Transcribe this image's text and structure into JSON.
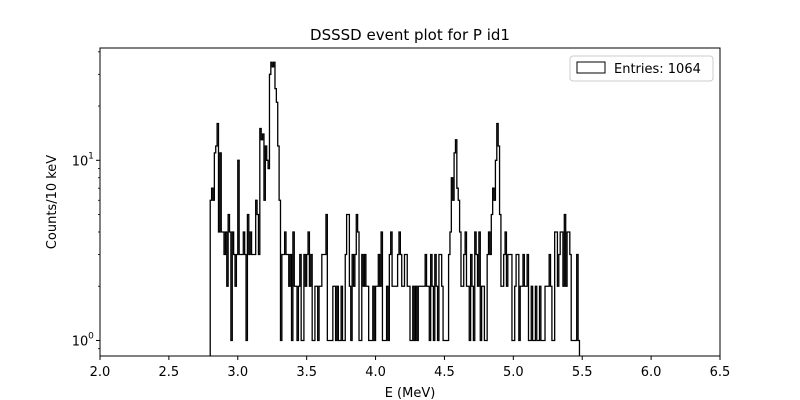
{
  "chart_data": {
    "type": "histogram",
    "title": "DSSSD event plot for P id1",
    "xlabel": "E (MeV)",
    "ylabel": "Counts/10 keV",
    "xlim": [
      2.0,
      6.5
    ],
    "ylim": [
      0.82,
      42
    ],
    "yscale": "log",
    "xticks": [
      "2.0",
      "2.5",
      "3.0",
      "3.5",
      "4.0",
      "4.5",
      "5.0",
      "5.5",
      "6.0",
      "6.5"
    ],
    "yticks": [
      {
        "value": 1,
        "base": "10",
        "exp": "0"
      },
      {
        "value": 10,
        "base": "10",
        "exp": "1"
      }
    ],
    "grid": false,
    "legend": {
      "position": "top-right",
      "label": "Entries: 1064"
    },
    "bin_width": 0.01,
    "x_start": 2.8,
    "counts": [
      6,
      7,
      6,
      11,
      12,
      16,
      4,
      11,
      4,
      4,
      3,
      4,
      2,
      5,
      4,
      1,
      4,
      3,
      2,
      3,
      10,
      3,
      3,
      3,
      4,
      3,
      1,
      5,
      3,
      4,
      3,
      3,
      3,
      6,
      5,
      3,
      15,
      13,
      14,
      6,
      12,
      10,
      9,
      30,
      35,
      33,
      35,
      25,
      21,
      12,
      6,
      1,
      3,
      3,
      4,
      3,
      3,
      2,
      3,
      1,
      4,
      2,
      2,
      1,
      2,
      3,
      1,
      1,
      3,
      2,
      3,
      4,
      2,
      3,
      1,
      1,
      2,
      2,
      1,
      2,
      2,
      3,
      3,
      3,
      5,
      1,
      1,
      1,
      1,
      2,
      2,
      1,
      2,
      1,
      1,
      2,
      1,
      1,
      3,
      5,
      5,
      2,
      1,
      3,
      2,
      3,
      5,
      4,
      1,
      1,
      3,
      2,
      3,
      2,
      2,
      1,
      1,
      1,
      2,
      1,
      2,
      2,
      3,
      2,
      4,
      1,
      1,
      1,
      2,
      1,
      3,
      4,
      2,
      2,
      2,
      2,
      3,
      4,
      3,
      2,
      2,
      3,
      3,
      2,
      2,
      1,
      1,
      2,
      1,
      2,
      1,
      2,
      2,
      2,
      2,
      2,
      3,
      2,
      2,
      1,
      3,
      2,
      1,
      3,
      2,
      1,
      3,
      3,
      2,
      1,
      1,
      1,
      1,
      3,
      4,
      8,
      6,
      11,
      13,
      7,
      6,
      4,
      2,
      2,
      3,
      4,
      2,
      2,
      1,
      3,
      2,
      1,
      4,
      3,
      2,
      4,
      1,
      2,
      2,
      1,
      1,
      3,
      4,
      3,
      5,
      7,
      6,
      10,
      16,
      12,
      5,
      2,
      2,
      3,
      4,
      2,
      3,
      3,
      3,
      1,
      1,
      2,
      3,
      3,
      1,
      2,
      2,
      3,
      2,
      2,
      3,
      1,
      1,
      2,
      1,
      1,
      2,
      1,
      1,
      2,
      1,
      1,
      1,
      2,
      2,
      2,
      3,
      2,
      1,
      1,
      4,
      4,
      2,
      3,
      4,
      4,
      2,
      5,
      2,
      4,
      4,
      3,
      1,
      1,
      1,
      1,
      3,
      1
    ]
  }
}
